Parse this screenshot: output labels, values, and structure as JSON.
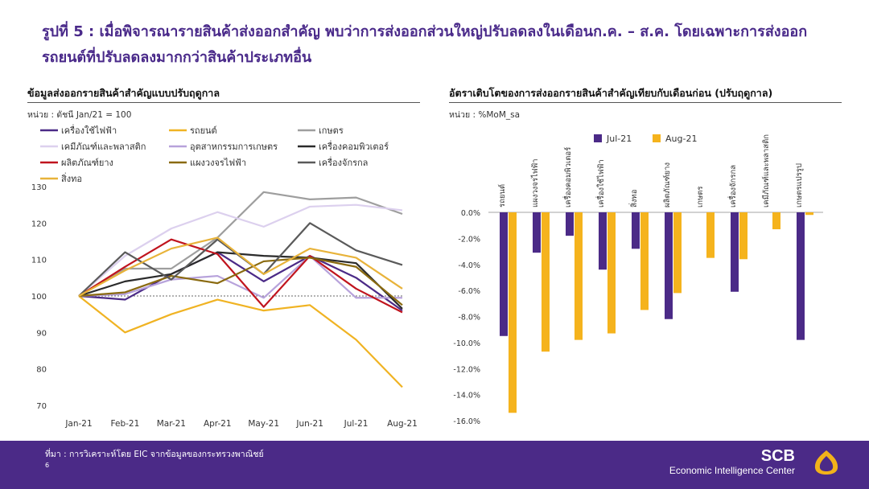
{
  "header": {
    "title": "รูปที่ 5 : เมื่อพิจารณารายสินค้าส่งออกสำคัญ พบว่าการส่งออกส่วนใหญ่ปรับลดลงในเดือนก.ค. – ส.ค. โดยเฉพาะการส่งออกรถยนต์ที่ปรับลดลงมากกว่าสินค้าประเภทอื่น"
  },
  "footer": {
    "source": "ที่มา : การวิเคราะห์โดย EIC จากข้อมูลของกระทรวงพาณิชย์",
    "page": "6",
    "brand": "SCB",
    "center": "Economic Intelligence Center",
    "colors": {
      "background": "#4b2a87",
      "logo": "#f2b21a"
    }
  },
  "chart_data": [
    {
      "type": "line",
      "title": "ข้อมูลส่งออกรายสินค้าสำคัญแบบปรับฤดูกาล",
      "unit": "หน่วย : ดัชนี Jan/21 = 100",
      "categories": [
        "Jan-21",
        "Feb-21",
        "Mar-21",
        "Apr-21",
        "May-21",
        "Jun-21",
        "Jul-21",
        "Aug-21"
      ],
      "ylim": [
        70,
        130
      ],
      "yticks": [
        70,
        80,
        90,
        100,
        110,
        120,
        130
      ],
      "reference_line": 100,
      "series": [
        {
          "name": "เครื่องใช้ไฟฟ้า",
          "color": "#4b2a87",
          "values": [
            100,
            99,
            106,
            112,
            104,
            111,
            105,
            96
          ]
        },
        {
          "name": "รถยนต์",
          "color": "#f0b323",
          "values": [
            100,
            90,
            95,
            99,
            96,
            97.5,
            88,
            75
          ]
        },
        {
          "name": "เกษตร",
          "color": "#9e9e9e",
          "values": [
            100,
            107.5,
            107.5,
            116,
            128.5,
            126.5,
            127,
            122.5
          ]
        },
        {
          "name": "เคมีภัณฑ์และพลาสติก",
          "color": "#dcd0ee",
          "values": [
            100,
            111,
            118.5,
            123,
            119,
            124.5,
            125,
            123.5
          ]
        },
        {
          "name": "อุตสาหกรรมการเกษตร",
          "color": "#b7a2db",
          "values": [
            100,
            100.5,
            104.5,
            105.5,
            99.5,
            111,
            99.5,
            99.5
          ]
        },
        {
          "name": "เครื่องคอมพิวเตอร์",
          "color": "#2b2b2b",
          "values": [
            100,
            104,
            106,
            112,
            111,
            110.5,
            109,
            96.5
          ]
        },
        {
          "name": "ผลิตภัณฑ์ยาง",
          "color": "#c0141e",
          "values": [
            100,
            108,
            115.5,
            111.5,
            97,
            111,
            102,
            95.5
          ]
        },
        {
          "name": "แผงวงจรไฟฟ้า",
          "color": "#8a6a10",
          "values": [
            100,
            101,
            105.5,
            103.5,
            109.5,
            110.5,
            108,
            97.5
          ]
        },
        {
          "name": "เครื่องจักรกล",
          "color": "#5a5a5a",
          "values": [
            100,
            112,
            104.5,
            115.5,
            106,
            120,
            112.5,
            108.5
          ]
        },
        {
          "name": "สิ่งทอ",
          "color": "#e8b33a",
          "values": [
            100,
            107,
            113,
            116,
            106,
            113,
            110.5,
            102
          ]
        }
      ]
    },
    {
      "type": "bar",
      "title": "อัตราเติบโตของการส่งออกรายสินค้าสำคัญเทียบกับเดือนก่อน (ปรับฤดูกาล)",
      "unit": "หน่วย : %MoM_sa",
      "categories": [
        "รถยนต์",
        "แผงวงจรไฟฟ้า",
        "เครื่องคอมพิวเตอร์",
        "เครื่องใช้ไฟฟ้า",
        "สิ่งทอ",
        "ผลิตภัณฑ์ยาง",
        "เกษตร",
        "เครื่องจักรกล",
        "เคมีภัณฑ์และพลาสติก",
        "เกษตรแปรรูป"
      ],
      "ylim": [
        -16,
        0
      ],
      "yticks": [
        "0.0%",
        "-2.0%",
        "-4.0%",
        "-6.0%",
        "-8.0%",
        "-10.0%",
        "-12.0%",
        "-14.0%",
        "-16.0%"
      ],
      "series": [
        {
          "name": "Jul-21",
          "color": "#4b2a87",
          "values": [
            -9.5,
            -3.1,
            -1.8,
            -4.4,
            -2.8,
            -8.2,
            0,
            -6.1,
            0,
            -9.8
          ]
        },
        {
          "name": "Aug-21",
          "color": "#f5b31d",
          "values": [
            -15.4,
            -10.7,
            -9.8,
            -9.3,
            -7.5,
            -6.2,
            -3.5,
            -3.6,
            -1.3,
            -0.2
          ]
        }
      ]
    }
  ]
}
